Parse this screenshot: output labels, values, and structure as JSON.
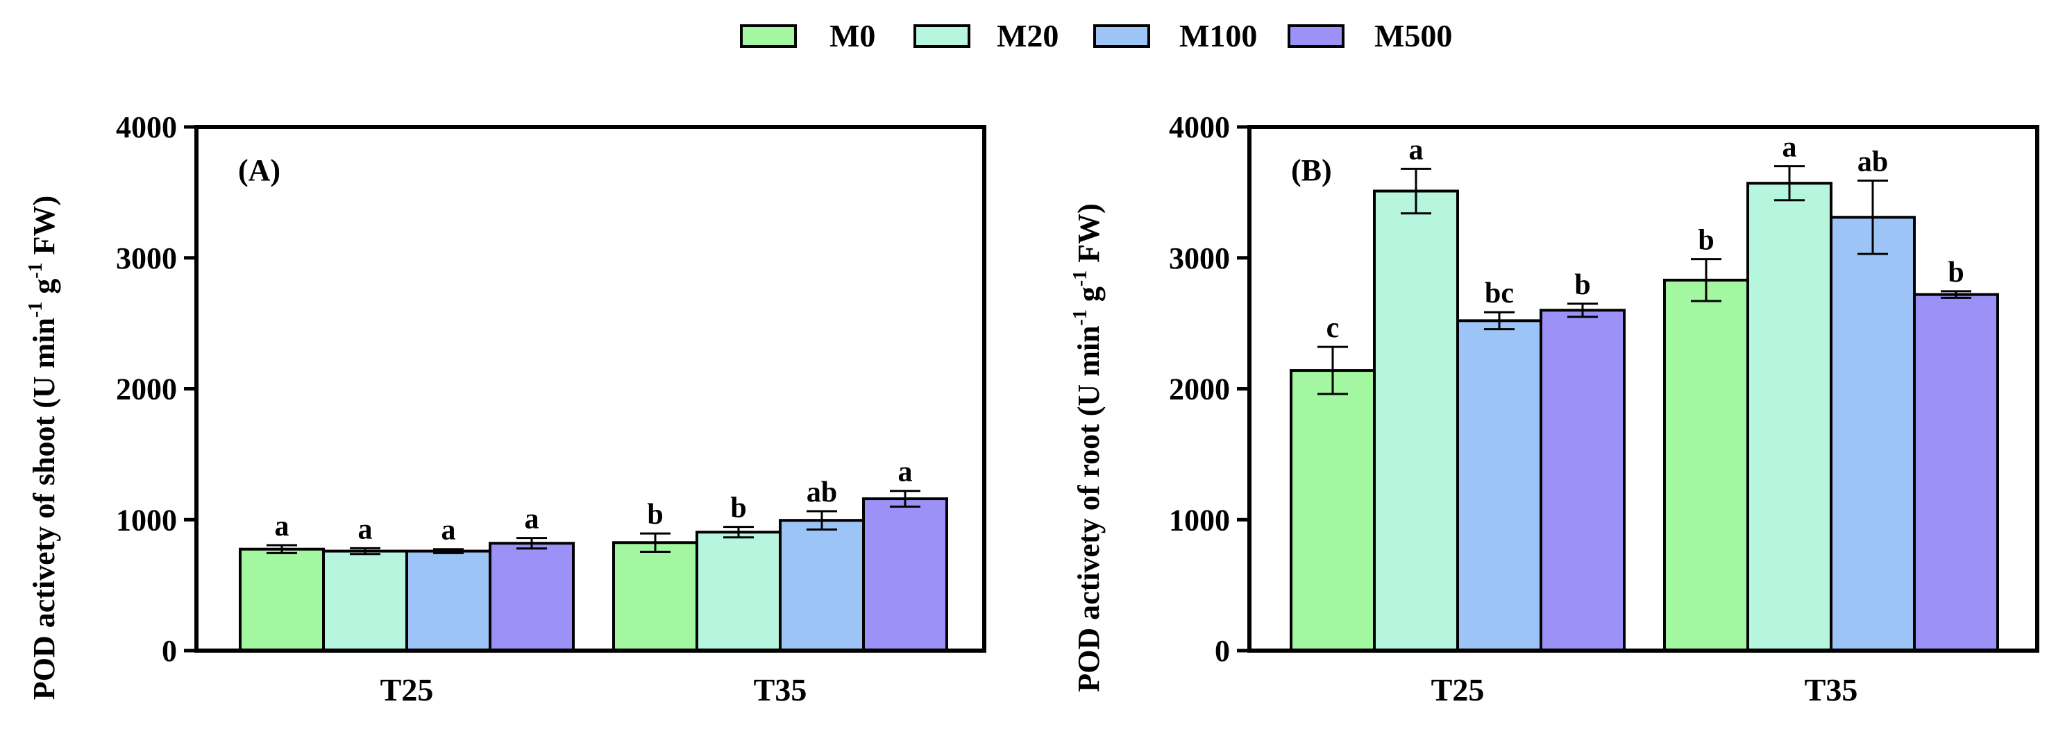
{
  "legend": [
    {
      "name": "M0",
      "color": "#a3f7a0"
    },
    {
      "name": "M20",
      "color": "#b6f5de"
    },
    {
      "name": "M100",
      "color": "#9cc4f6"
    },
    {
      "name": "M500",
      "color": "#9b91f7"
    }
  ],
  "chart_data": [
    {
      "type": "bar",
      "panel_label": "(A)",
      "ylabel_parts": [
        "POD activety of shoot (U min",
        "-1",
        " g",
        "-1",
        " FW)"
      ],
      "ylim": [
        0,
        4000
      ],
      "yticks": [
        "0",
        "1000",
        "2000",
        "3000",
        "4000"
      ],
      "categories": [
        "T25",
        "T35"
      ],
      "series": [
        {
          "name": "M0",
          "values": [
            775,
            825
          ],
          "errors": [
            30,
            70
          ],
          "letters": [
            "a",
            "b"
          ]
        },
        {
          "name": "M20",
          "values": [
            760,
            905
          ],
          "errors": [
            22,
            40
          ],
          "letters": [
            "a",
            "b"
          ]
        },
        {
          "name": "M100",
          "values": [
            760,
            995
          ],
          "errors": [
            15,
            70
          ],
          "letters": [
            "a",
            "ab"
          ]
        },
        {
          "name": "M500",
          "values": [
            820,
            1160
          ],
          "errors": [
            40,
            60
          ],
          "letters": [
            "a",
            "a"
          ]
        }
      ]
    },
    {
      "type": "bar",
      "panel_label": "(B)",
      "ylabel_parts": [
        "POD activety of root (U min",
        "-1",
        " g",
        "-1",
        " FW)"
      ],
      "ylim": [
        0,
        4000
      ],
      "yticks": [
        "0",
        "1000",
        "2000",
        "3000",
        "4000"
      ],
      "categories": [
        "T25",
        "T35"
      ],
      "series": [
        {
          "name": "M0",
          "values": [
            2140,
            2830
          ],
          "errors": [
            180,
            160
          ],
          "letters": [
            "c",
            "b"
          ]
        },
        {
          "name": "M20",
          "values": [
            3510,
            3570
          ],
          "errors": [
            170,
            130
          ],
          "letters": [
            "a",
            "a"
          ]
        },
        {
          "name": "M100",
          "values": [
            2520,
            3310
          ],
          "errors": [
            65,
            280
          ],
          "letters": [
            "bc",
            "ab"
          ]
        },
        {
          "name": "M500",
          "values": [
            2600,
            2720
          ],
          "errors": [
            50,
            25
          ],
          "letters": [
            "b",
            "b"
          ]
        }
      ]
    }
  ]
}
